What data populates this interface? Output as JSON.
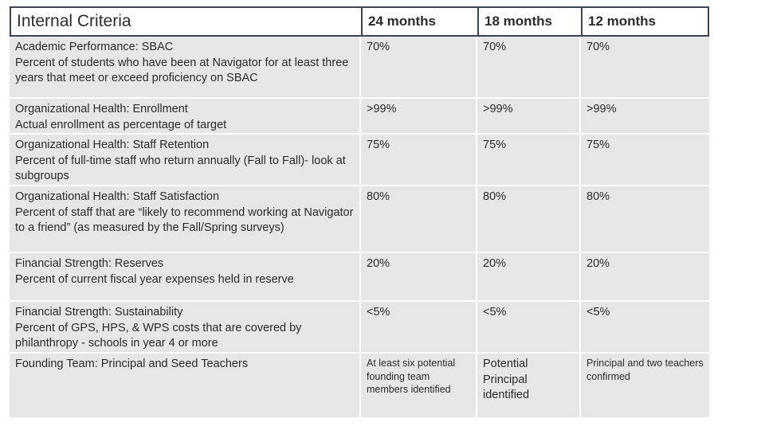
{
  "table": {
    "headers": [
      "Internal Criteria",
      "24 months",
      "18 months",
      "12 months"
    ],
    "rows": [
      {
        "title": "Academic Performance: SBAC",
        "desc": "Percent of students who have been at Navigator for at least three years that meet or exceed proficiency on SBAC",
        "values": [
          "70%",
          "70%",
          "70%"
        ]
      },
      {
        "title": "Organizational Health: Enrollment",
        "desc": "Actual enrollment as percentage of target",
        "values": [
          ">99%",
          ">99%",
          ">99%"
        ]
      },
      {
        "title": "Organizational Health: Staff Retention",
        "desc": "Percent of full-time staff who return annually (Fall to Fall)- look at subgroups",
        "values": [
          "75%",
          "75%",
          "75%"
        ]
      },
      {
        "title": "Organizational Health: Staff Satisfaction",
        "desc": "Percent of staff that are “likely to recommend working at Navigator to a friend” (as measured by the Fall/Spring surveys)",
        "values": [
          "80%",
          "80%",
          "80%"
        ]
      },
      {
        "title": "Financial Strength: Reserves",
        "desc": "Percent of current fiscal year expenses held in reserve",
        "values": [
          "20%",
          "20%",
          "20%"
        ]
      },
      {
        "title": "Financial Strength: Sustainability",
        "desc": "Percent of GPS, HPS, & WPS costs  that are covered by philanthropy - schools in year 4 or more",
        "values": [
          "<5%",
          "<5%",
          "<5%"
        ]
      },
      {
        "title": "Founding Team: Principal and Seed Teachers",
        "desc": "",
        "values": [
          "At least six potential founding team members identified",
          "Potential Principal identified",
          "Principal and two teachers confirmed"
        ]
      }
    ]
  }
}
